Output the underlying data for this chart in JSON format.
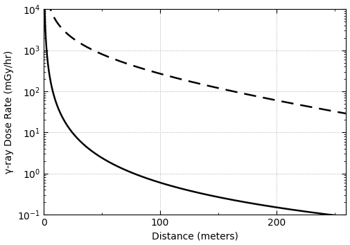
{
  "xlabel": "Distance (meters)",
  "ylabel": "γ-ray Dose Rate (mGy/hr)",
  "xlim": [
    0,
    260
  ],
  "ylim_log": [
    -1,
    4
  ],
  "x_ticks": [
    0,
    100,
    200
  ],
  "background_color": "#ffffff",
  "grid_color": "#aaaaaa",
  "line_color": "#000000",
  "solid_A": 6000.0,
  "solid_mu": 0.0,
  "solid_n": 2.0,
  "dashed_A": 60000.0,
  "dashed_mu": 0.008,
  "dashed_n": 1.0,
  "x_start": 0.3
}
